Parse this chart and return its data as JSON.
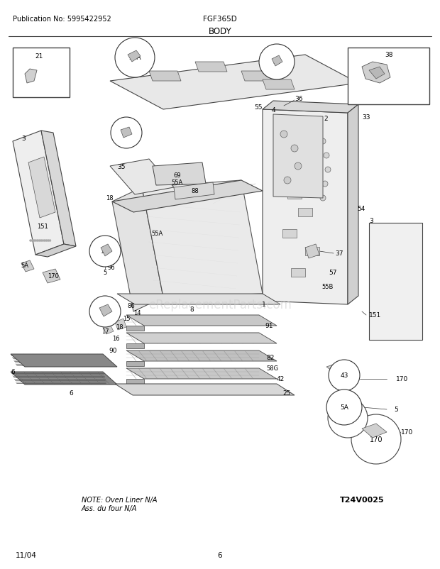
{
  "page_width": 6.2,
  "page_height": 8.03,
  "dpi": 100,
  "background_color": "#ffffff",
  "header_pub": "Publication No: 5995422952",
  "header_model": "FGF365D",
  "header_title": "BODY",
  "footer_date": "11/04",
  "footer_page": "6",
  "note_text": "NOTE: Oven Liner N/A\nAss. du four N/A",
  "diagram_code": "T24V0025",
  "watermark": "eReplacementParts.com"
}
